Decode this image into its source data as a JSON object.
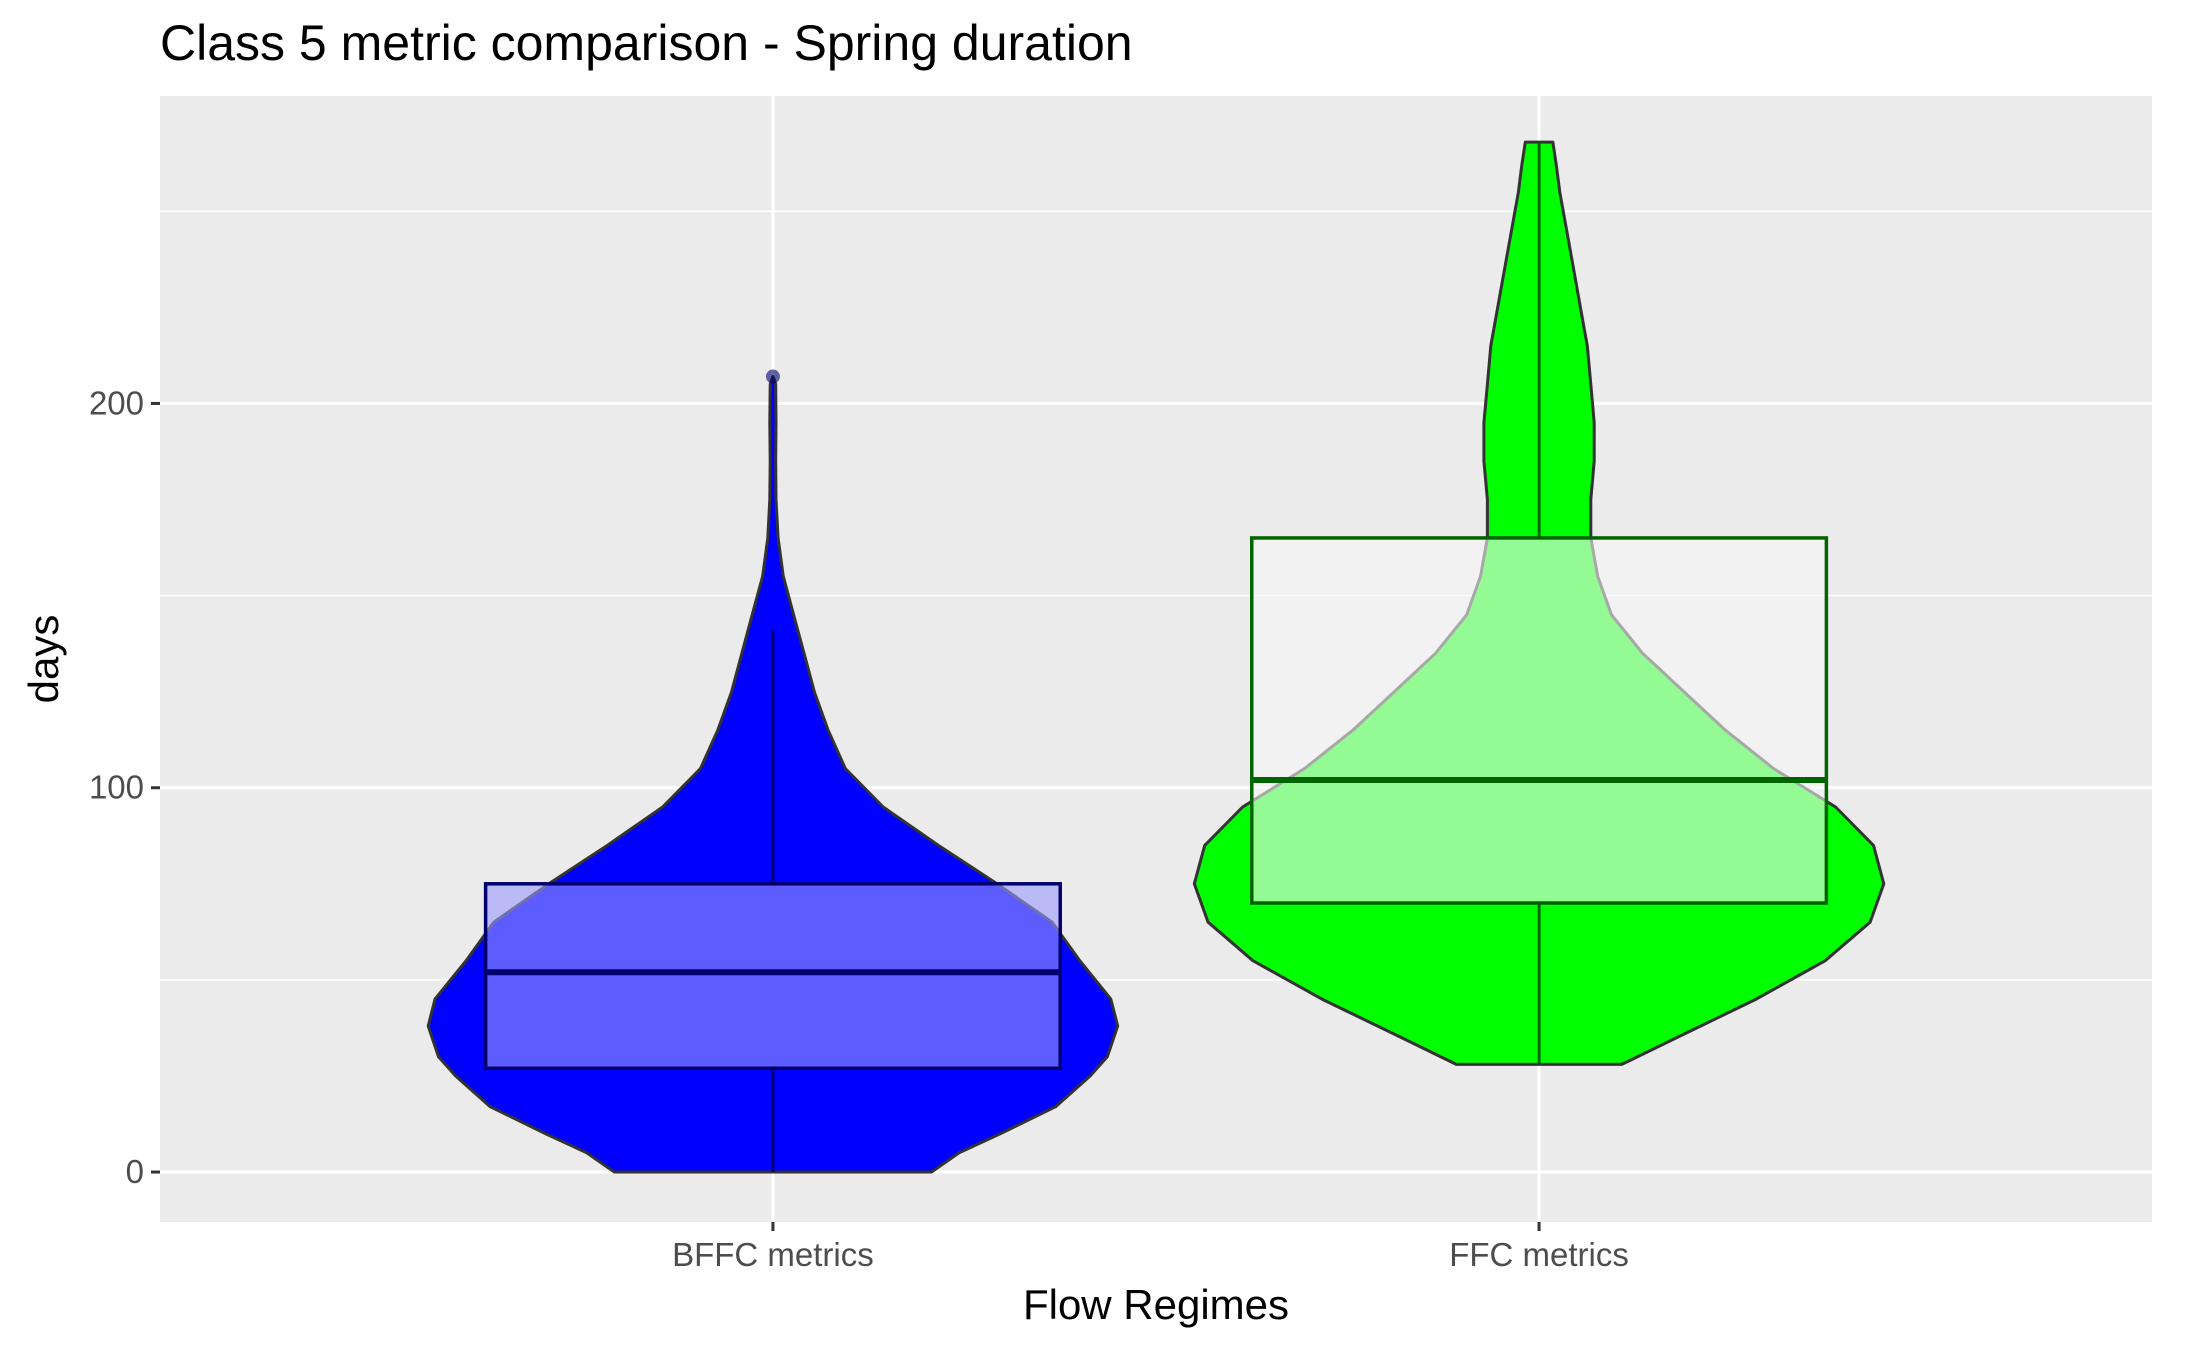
{
  "chart_data": {
    "type": "violin",
    "title": "Class 5 metric comparison - Spring duration",
    "xlabel": "Flow Regimes",
    "ylabel": "days",
    "categories": [
      "BFFC metrics",
      "FFC metrics"
    ],
    "ylim": [
      -13,
      280
    ],
    "yticks": [
      0,
      100,
      200
    ],
    "grid": true,
    "legend": "none",
    "colors": {
      "panel": "#EBEBEB",
      "grid": "#FFFFFF",
      "outline": "#333333",
      "tick_text": "#4D4D4D"
    },
    "series": [
      {
        "category": "BFFC metrics",
        "fill": "#0000FF",
        "box_fill": "#9999FF",
        "box_line": "#00006E",
        "violin": {
          "min": 0,
          "max": 207,
          "profile": [
            [
              0,
              0.46
            ],
            [
              5,
              0.54
            ],
            [
              10,
              0.66
            ],
            [
              17,
              0.82
            ],
            [
              25,
              0.92
            ],
            [
              30,
              0.97
            ],
            [
              38,
              1.0
            ],
            [
              45,
              0.98
            ],
            [
              55,
              0.89
            ],
            [
              65,
              0.81
            ],
            [
              75,
              0.65
            ],
            [
              85,
              0.48
            ],
            [
              95,
              0.32
            ],
            [
              105,
              0.21
            ],
            [
              115,
              0.16
            ],
            [
              125,
              0.12
            ],
            [
              135,
              0.09
            ],
            [
              145,
              0.06
            ],
            [
              155,
              0.03
            ],
            [
              165,
              0.015
            ],
            [
              175,
              0.009
            ],
            [
              185,
              0.008
            ],
            [
              195,
              0.009
            ],
            [
              205,
              0.008
            ],
            [
              207,
              0.0
            ]
          ]
        },
        "box": {
          "lower_whisker": 0,
          "q1": 27,
          "median": 52,
          "q3": 75,
          "upper_whisker": 141
        },
        "outliers": [
          207
        ]
      },
      {
        "category": "FFC metrics",
        "fill": "#00FF00",
        "box_fill": "#F7F7F7",
        "box_line": "#006400",
        "violin": {
          "min": 28,
          "max": 268,
          "profile": [
            [
              28,
              0.24
            ],
            [
              35,
              0.4
            ],
            [
              45,
              0.63
            ],
            [
              55,
              0.83
            ],
            [
              65,
              0.96
            ],
            [
              75,
              1.0
            ],
            [
              85,
              0.97
            ],
            [
              95,
              0.86
            ],
            [
              105,
              0.68
            ],
            [
              115,
              0.54
            ],
            [
              125,
              0.42
            ],
            [
              135,
              0.3
            ],
            [
              145,
              0.21
            ],
            [
              155,
              0.17
            ],
            [
              165,
              0.15
            ],
            [
              175,
              0.15
            ],
            [
              185,
              0.16
            ],
            [
              195,
              0.16
            ],
            [
              205,
              0.15
            ],
            [
              215,
              0.14
            ],
            [
              225,
              0.12
            ],
            [
              235,
              0.1
            ],
            [
              245,
              0.08
            ],
            [
              255,
              0.06
            ],
            [
              262,
              0.05
            ],
            [
              268,
              0.04
            ]
          ]
        },
        "box": {
          "lower_whisker": 28,
          "q1": 70,
          "median": 102,
          "q3": 165,
          "upper_whisker": 268
        },
        "outliers": []
      }
    ]
  }
}
